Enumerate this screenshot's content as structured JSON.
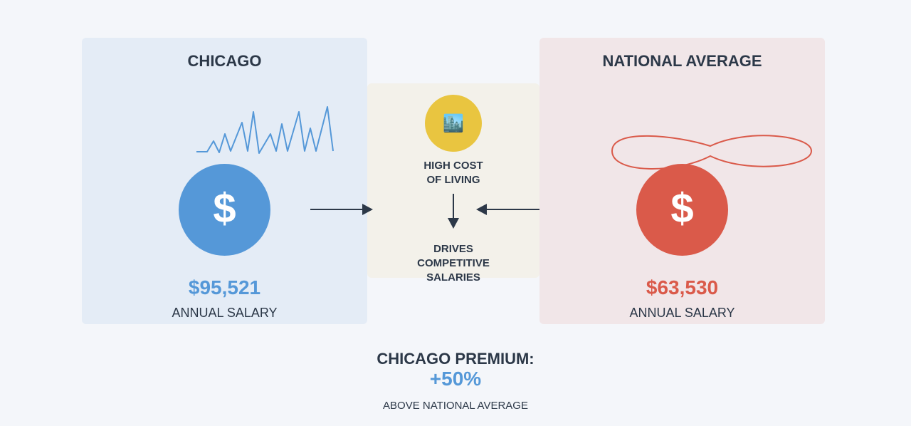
{
  "chicago": {
    "title": "CHICAGO",
    "icon": "dollar-icon",
    "symbol": "$",
    "amount": "$95,521",
    "caption": "ANNUAL SALARY",
    "accent_color": "#5598d8"
  },
  "national": {
    "title": "NATIONAL AVERAGE",
    "icon": "dollar-icon",
    "symbol": "$",
    "amount": "$63,530",
    "caption": "ANNUAL SALARY",
    "accent_color": "#da5a4a"
  },
  "middle": {
    "icon": "city-skyline-icon",
    "icon_glyph": "🏙️",
    "cause_label": "HIGH COST\nOF LIVING",
    "effect_label": "DRIVES\nCOMPETITIVE\nSALARIES",
    "accent_color": "#e9c540"
  },
  "summary": {
    "title": "CHICAGO PREMIUM:",
    "value": "+50%",
    "caption": "ABOVE NATIONAL AVERAGE",
    "value_color": "#5598d8"
  }
}
